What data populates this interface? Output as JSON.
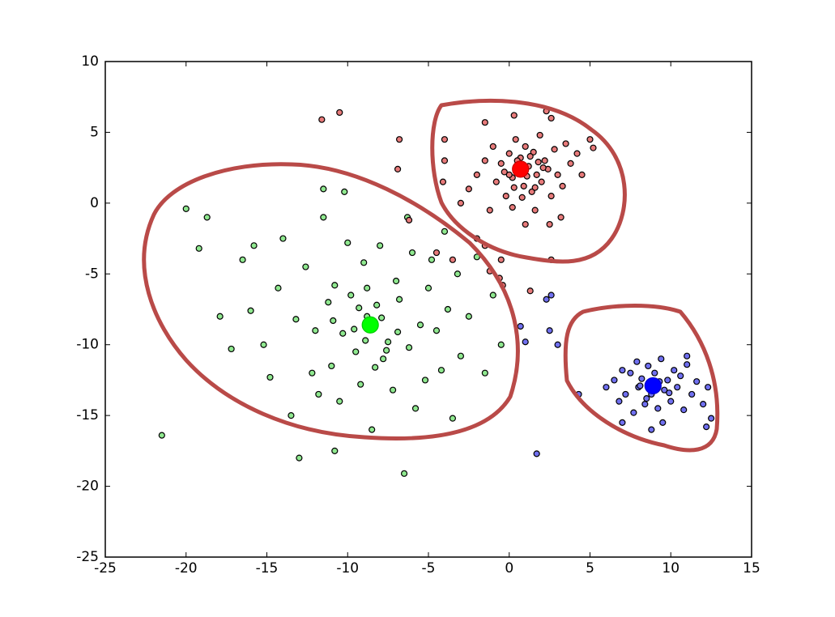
{
  "chart_data": {
    "type": "scatter",
    "xlim": [
      -25,
      15
    ],
    "ylim": [
      -25,
      10
    ],
    "xticks": [
      -25,
      -20,
      -15,
      -10,
      -5,
      0,
      5,
      10,
      15
    ],
    "yticks": [
      -25,
      -20,
      -15,
      -10,
      -5,
      0,
      5,
      10
    ],
    "grid": false,
    "series": [
      {
        "color": "#8fe88f",
        "edgecolor": "#000000",
        "marker_size": 3.5,
        "x": [
          -21.5,
          -20,
          -19.2,
          -18.7,
          -17.9,
          -17.2,
          -16.5,
          -16,
          -15.8,
          -15.2,
          -14.8,
          -14.3,
          -14,
          -13.5,
          -13.2,
          -13,
          -12.6,
          -12.2,
          -12,
          -11.8,
          -11.5,
          -11.2,
          -11,
          -10.8,
          -10.5,
          -10.3,
          -10,
          -9.8,
          -9.5,
          -9.2,
          -9,
          -8.8,
          -8.5,
          -8.2,
          -8,
          -7.8,
          -7.5,
          -7.2,
          -7,
          -6.8,
          -6.5,
          -6.2,
          -6,
          -5.8,
          -5.5,
          -5.2,
          -5,
          -4.8,
          -4.5,
          -4.2,
          -4,
          -3.8,
          -3.5,
          -3.2,
          -3,
          -2.5,
          -2,
          -1.5,
          -1,
          -0.5,
          -11.5,
          -10.2,
          -6.3,
          -8.8,
          -10.8,
          -9.6,
          -7.9,
          -8.9,
          -10.9,
          -6.9,
          -9.3,
          -7.6,
          -8.3
        ],
        "values": [
          -16.4,
          -0.4,
          -3.2,
          -1,
          -8,
          -10.3,
          -4,
          -7.6,
          -3,
          -10,
          -12.3,
          -6,
          -2.5,
          -15,
          -8.2,
          -18,
          -4.5,
          -12,
          -9,
          -13.5,
          -1,
          -7,
          -11.5,
          -5.8,
          -14,
          -9.2,
          -2.8,
          -6.5,
          -10.5,
          -12.8,
          -4.2,
          -8,
          -16,
          -7.2,
          -3,
          -11,
          -9.8,
          -13.2,
          -5.5,
          -6.8,
          -19.1,
          -10.2,
          -3.5,
          -14.5,
          -8.6,
          -12.5,
          -6,
          -4,
          -9,
          -11.8,
          -2,
          -7.5,
          -15.2,
          -5,
          -10.8,
          -8,
          -3.8,
          -12,
          -6.5,
          -10,
          1,
          0.8,
          -1,
          -6,
          -17.5,
          -8.9,
          -8.1,
          -9.7,
          -8.3,
          -9.1,
          -7.4,
          -10.4,
          -11.6
        ]
      },
      {
        "color": "#e77a7a",
        "edgecolor": "#000000",
        "marker_size": 3.5,
        "x": [
          -1.5,
          -1,
          -0.8,
          -0.5,
          -0.2,
          0,
          0.2,
          0.4,
          0.5,
          0.7,
          0.9,
          1,
          1.2,
          1.4,
          1.5,
          1.7,
          1.9,
          2,
          2.2,
          2.4,
          2.6,
          2.8,
          3,
          3.3,
          3.5,
          3.8,
          4.2,
          4.5,
          5,
          5.2,
          -2,
          -2.5,
          -3,
          -4,
          -4.1,
          -1.5,
          -1.2,
          0.2,
          1,
          2.5,
          1.6,
          -2,
          -1.5,
          -0.5,
          0.3,
          2.3,
          2.6,
          -4,
          -6.9,
          -6.8,
          -11.6,
          -10.5,
          -6.2,
          -4.5,
          -3.5,
          -1.2,
          -0.6,
          -0.4,
          1.3,
          2.6,
          3.2,
          0,
          0.5,
          1.1,
          1.8,
          0.3,
          1.3,
          -0.3,
          2.1,
          1.6,
          0.8
        ],
        "values": [
          3,
          4,
          1.5,
          2.8,
          0.5,
          3.5,
          1.8,
          4.5,
          2.2,
          3.2,
          1.2,
          4,
          2.6,
          0.8,
          3.6,
          2,
          4.8,
          1.5,
          3,
          2.4,
          0.5,
          3.8,
          2,
          1.2,
          4.2,
          2.8,
          3.5,
          2,
          4.5,
          3.9,
          2,
          1,
          0,
          3,
          1.5,
          5.7,
          -0.5,
          -0.3,
          -1.5,
          -1.5,
          -0.5,
          -2.5,
          -3,
          -4,
          6.2,
          6.5,
          6,
          4.5,
          2.4,
          4.5,
          5.9,
          6.4,
          -1.2,
          -3.5,
          -4,
          -4.8,
          -5.3,
          -5.8,
          -6.2,
          -4,
          -1,
          2,
          3,
          1.9,
          2.9,
          1.1,
          3.3,
          2.2,
          2.5,
          1.1,
          0.4
        ]
      },
      {
        "color": "#7070f0",
        "edgecolor": "#000000",
        "marker_size": 3.5,
        "x": [
          6,
          6.5,
          6.8,
          7,
          7.2,
          7.5,
          7.7,
          7.9,
          8,
          8.2,
          8.4,
          8.6,
          8.8,
          9,
          9.2,
          9.4,
          9.6,
          9.8,
          10,
          10.2,
          10.4,
          10.6,
          10.8,
          11,
          11.3,
          11.6,
          12,
          12.3,
          12.5,
          12.2,
          11,
          7,
          8.8,
          9.5,
          4.3,
          2.5,
          3,
          2.3,
          2.6,
          1.7,
          0.7,
          1,
          8.5,
          9.3,
          9.9,
          8.1
        ],
        "values": [
          -13,
          -12.5,
          -14,
          -11.8,
          -13.5,
          -12,
          -14.8,
          -11.2,
          -13,
          -12.4,
          -14.2,
          -11.5,
          -13.5,
          -12,
          -14.5,
          -11,
          -13.2,
          -12.5,
          -14,
          -11.8,
          -13,
          -12.2,
          -14.6,
          -11.4,
          -13.5,
          -12.6,
          -14.2,
          -13,
          -15.2,
          -15.8,
          -10.8,
          -15.5,
          -16,
          -15.5,
          -13.5,
          -9,
          -10,
          -6.8,
          -6.5,
          -17.7,
          -8.7,
          -9.8,
          -13.8,
          -12.6,
          -13.4,
          -12.9
        ]
      },
      {
        "color": "#00ff00",
        "edgecolor": "#00cc00",
        "marker_size": 10,
        "x": [
          -8.6
        ],
        "values": [
          -8.6
        ]
      },
      {
        "color": "#ff0000",
        "edgecolor": "#cc0000",
        "marker_size": 10,
        "x": [
          0.7
        ],
        "values": [
          2.4
        ]
      },
      {
        "color": "#0000ff",
        "edgecolor": "#0000cc",
        "marker_size": 10,
        "x": [
          8.9
        ],
        "values": [
          -12.9
        ]
      }
    ]
  }
}
